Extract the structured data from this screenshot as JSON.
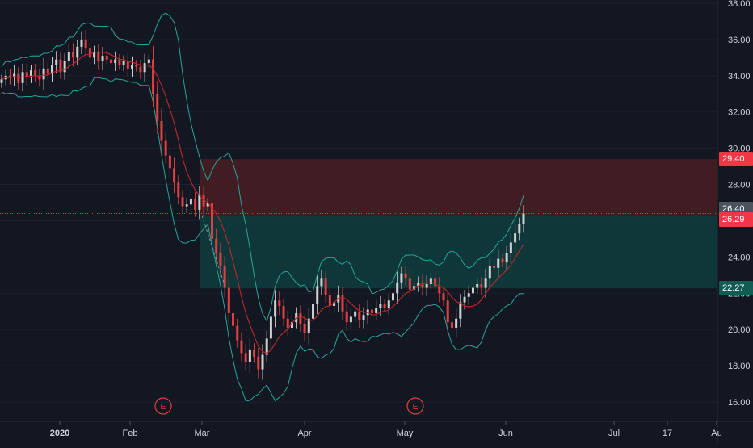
{
  "colors": {
    "background": "#131722",
    "axis_text": "#d1d4dc",
    "grid": "#1c2030",
    "up": "#cfcfcf",
    "down": "#e0403f",
    "band": "#26a69a",
    "ma": "#b2282a",
    "target_zone": "#4a1d22",
    "stop_zone": "#0f3c3c",
    "target_tag": "#f23645",
    "stop_tag": "#0f5c55",
    "last_price_tag": "#4c525e"
  },
  "price_axis": {
    "ticks": [
      "38.00",
      "36.00",
      "34.00",
      "32.00",
      "30.00",
      "28.00",
      "26.00",
      "24.00",
      "22.00",
      "20.00",
      "18.00",
      "16.00"
    ],
    "tags": {
      "target": "29.40",
      "last": "26.40",
      "entry": "26.29",
      "stop": "22.27"
    }
  },
  "time_axis": {
    "labels": [
      "2020",
      "Feb",
      "Mar",
      "Apr",
      "May",
      "Jun",
      "Jul",
      "17",
      "Au"
    ]
  },
  "events": [
    {
      "label": "E"
    },
    {
      "label": "E"
    }
  ],
  "chart_data": {
    "type": "candlestick",
    "ylim": [
      15.5,
      38.2
    ],
    "x_start": "2020-01",
    "close_series": [
      33.8,
      34.0,
      33.9,
      34.1,
      33.6,
      34.2,
      33.9,
      34.3,
      34.0,
      33.8,
      34.4,
      34.1,
      34.6,
      34.9,
      34.2,
      34.8,
      35.3,
      35.0,
      35.6,
      36.0,
      35.5,
      35.0,
      35.3,
      34.8,
      35.1,
      34.9,
      34.7,
      34.9,
      34.6,
      34.8,
      34.4,
      34.6,
      34.5,
      34.2,
      34.7,
      34.9,
      33.0,
      31.5,
      30.4,
      29.6,
      28.9,
      28.1,
      27.3,
      26.8,
      26.9,
      27.2,
      26.6,
      27.4,
      26.8,
      27.0,
      25.0,
      24.2,
      23.5,
      22.3,
      20.9,
      20.2,
      19.4,
      18.7,
      18.2,
      18.9,
      18.5,
      17.8,
      18.6,
      19.5,
      20.7,
      21.6,
      21.3,
      20.6,
      20.1,
      20.4,
      20.9,
      20.3,
      19.8,
      20.6,
      21.4,
      22.4,
      22.8,
      21.9,
      21.3,
      21.5,
      21.9,
      21.0,
      20.4,
      20.7,
      21.0,
      20.5,
      20.8,
      21.1,
      20.9,
      21.2,
      21.4,
      21.2,
      21.6,
      22.0,
      22.6,
      23.1,
      22.8,
      22.2,
      22.4,
      22.6,
      22.3,
      22.5,
      22.8,
      22.4,
      22.0,
      21.6,
      20.4,
      20.1,
      20.6,
      21.5,
      21.8,
      22.0,
      22.3,
      22.5,
      22.3,
      22.8,
      23.5,
      23.4,
      23.9,
      23.7,
      24.2,
      24.8,
      25.3,
      25.8,
      26.4
    ]
  }
}
